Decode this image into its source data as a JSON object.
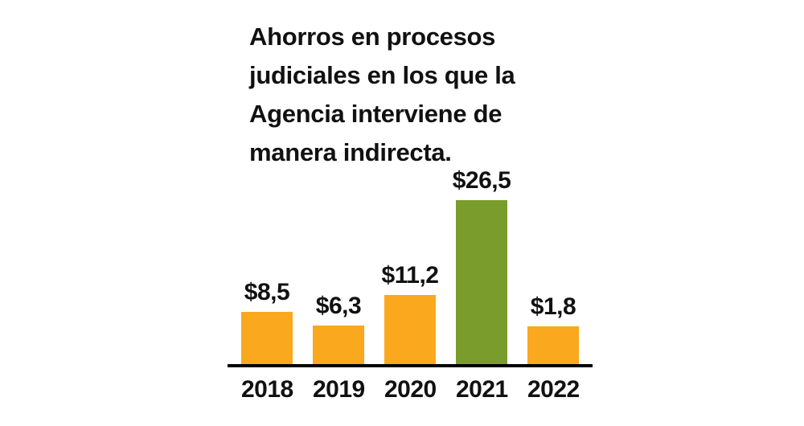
{
  "chart_data": {
    "type": "bar",
    "title": "Ahorros en procesos\njudiciales en los que la\nAgencia interviene de\nmanera indirecta.",
    "categories": [
      "2018",
      "2019",
      "2020",
      "2021",
      "2022"
    ],
    "values": [
      8.5,
      6.3,
      11.2,
      26.5,
      1.8
    ],
    "value_labels": [
      "$8,5",
      "$6,3",
      "$11,2",
      "$26,5",
      "$1,8"
    ],
    "bar_colors": [
      "orange",
      "orange",
      "orange",
      "green",
      "orange"
    ],
    "palette": {
      "orange": "#FAA81E",
      "green": "#7A9C2C"
    },
    "highlighted_category": "2021",
    "xlabel": "",
    "ylabel": "",
    "ylim": [
      0,
      28
    ],
    "grid": false,
    "legend": "none",
    "axis_color": "#000000",
    "text_color": "#111111"
  }
}
